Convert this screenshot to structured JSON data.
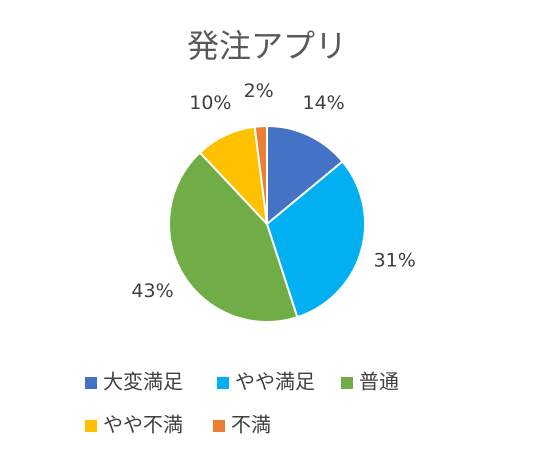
{
  "chart_data": {
    "type": "pie",
    "title": "発注アプリ",
    "categories": [
      "大変満足",
      "やや満足",
      "普通",
      "やや不満",
      "不満"
    ],
    "values": [
      14,
      31,
      43,
      10,
      2
    ],
    "value_labels": [
      "14%",
      "31%",
      "43%",
      "10%",
      "2%"
    ],
    "colors": [
      "#4472c4",
      "#00b0f0",
      "#70ad47",
      "#ffc000",
      "#ed7d31"
    ],
    "legend": "bottom"
  }
}
